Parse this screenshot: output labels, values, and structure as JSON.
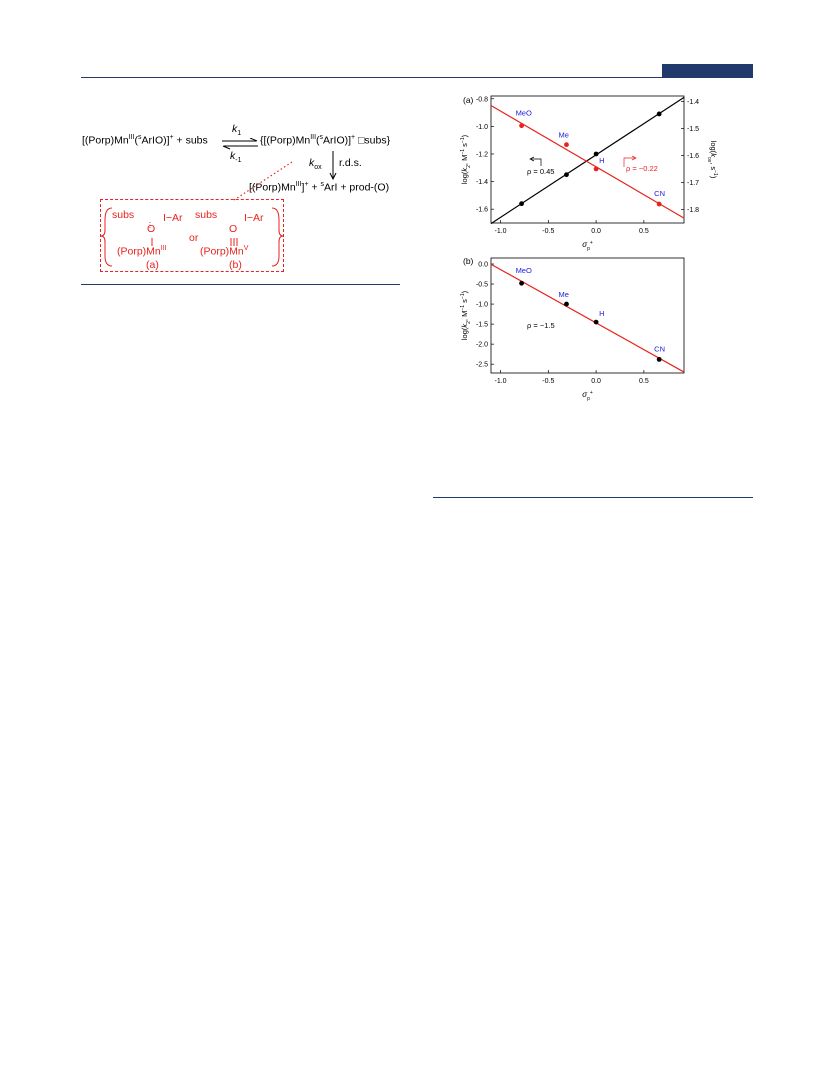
{
  "scheme": {
    "reactant": "[(Porp)Mn",
    "reactant_ox": "III",
    "reactant_ligand": "(",
    "reactant_sup_s": "s",
    "reactant_tail": "ArIO)]",
    "reactant_charge": "+",
    "plus_subs": " + subs",
    "k1": "k",
    "k1_sub": "1",
    "km1": "k",
    "km1_sub": "-1",
    "complex_head": "{[(Porp)Mn",
    "complex_ox": "III",
    "complex_mid": "(",
    "complex_sup_s": "s",
    "complex_tail": "ArIO)]",
    "complex_charge": "+",
    "complex_end": " □subs}",
    "kox": "k",
    "kox_sub": "ox",
    "rds": "r.d.s.",
    "product_head": "[(Porp)Mn",
    "product_ox": "III",
    "product_mid": "]",
    "product_charge": "+",
    "product_tail": " + ",
    "product_sup_s": "s",
    "product_end": "ArI + prod-(O)",
    "inter_a": {
      "subs": "subs",
      "o": "O",
      "iar": "I−Ar",
      "mn": "(Porp)Mn",
      "mn_ox": "III",
      "label": "(a)"
    },
    "or": "or",
    "inter_b": {
      "subs": "subs",
      "o": "O",
      "iar": "I−Ar",
      "mn": "(Porp)Mn",
      "mn_ox": "V",
      "label": "(b)"
    }
  },
  "chart_data": [
    {
      "type": "scatter",
      "panel_label": "(a)",
      "xlabel": "σp+",
      "ylabel": "log(k2, M−1 s−1)",
      "y2label": "log(kox, s−1)",
      "xlim": [
        -1.1,
        0.92
      ],
      "ylim": [
        -1.7,
        -0.78
      ],
      "y2lim": [
        -1.85,
        -1.38
      ],
      "xticks": [
        "-1.0",
        "-0.5",
        "0.0",
        "0.5"
      ],
      "yticks": [
        "-0.8",
        "-1.0",
        "-1.2",
        "-1.4",
        "-1.6"
      ],
      "y2ticks": [
        "-1.4",
        "-1.5",
        "-1.6",
        "-1.7",
        "-1.8"
      ],
      "series": [
        {
          "axis": "left",
          "color": "#000000",
          "x": [
            -0.78,
            -0.31,
            0.0,
            0.66
          ],
          "y": [
            -1.56,
            -1.35,
            -1.2,
            -0.91
          ],
          "fit_annotation": "ρ = 0.45"
        },
        {
          "axis": "right",
          "color": "#e8221d",
          "x": [
            -0.78,
            -0.31,
            0.0,
            0.66
          ],
          "y": [
            -1.49,
            -1.56,
            -1.65,
            -1.78
          ],
          "fit_annotation": "ρ = −0.22"
        }
      ],
      "point_labels": [
        "MeO",
        "Me",
        "H",
        "CN"
      ]
    },
    {
      "type": "scatter",
      "panel_label": "(b)",
      "xlabel": "σp+",
      "ylabel": "log(k2, M−1 s−1)",
      "xlim": [
        -1.1,
        0.92
      ],
      "ylim": [
        -2.72,
        0.15
      ],
      "xticks": [
        "-1.0",
        "-0.5",
        "0.0",
        "0.5"
      ],
      "yticks": [
        "0.0",
        "-0.5",
        "-1.0",
        "-1.5",
        "-2.0",
        "-2.5"
      ],
      "series": [
        {
          "axis": "left",
          "color": "#000000",
          "line_color": "#e8221d",
          "x": [
            -0.78,
            -0.31,
            0.0,
            0.66
          ],
          "y": [
            -0.48,
            -1.0,
            -1.45,
            -2.38
          ],
          "fit_annotation": "ρ = −1.5"
        }
      ],
      "point_labels": [
        "MeO",
        "Me",
        "H",
        "CN"
      ]
    }
  ]
}
